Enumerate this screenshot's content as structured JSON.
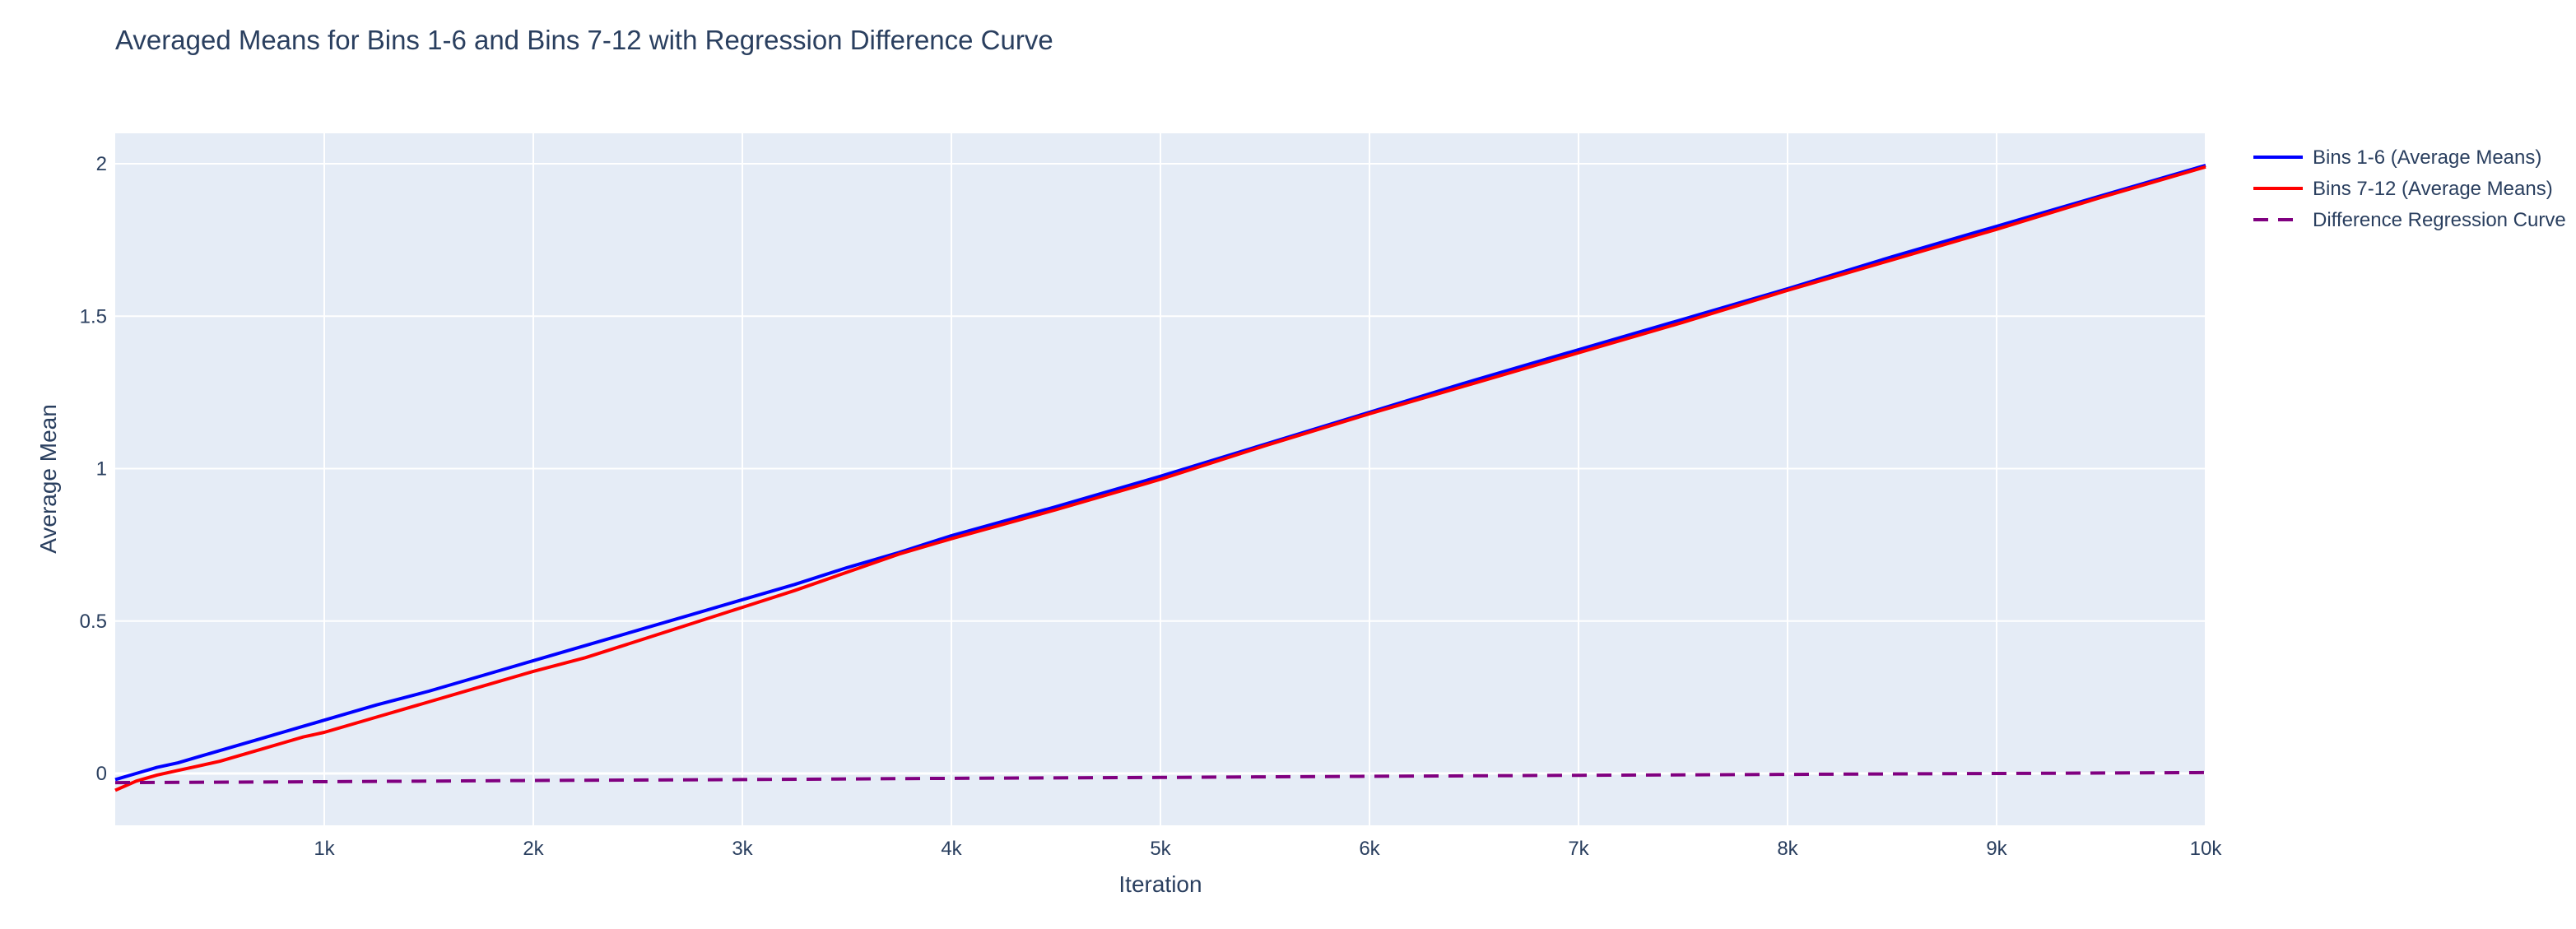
{
  "chart_data": {
    "type": "line",
    "title": "Averaged Means for Bins 1-6 and Bins 7-12 with Regression Difference Curve",
    "xlabel": "Iteration",
    "ylabel": "Average Mean",
    "xlim": [
      0,
      10000
    ],
    "ylim": [
      -0.17,
      2.1
    ],
    "x_ticks": [
      {
        "value": 1000,
        "label": "1k"
      },
      {
        "value": 2000,
        "label": "2k"
      },
      {
        "value": 3000,
        "label": "3k"
      },
      {
        "value": 4000,
        "label": "4k"
      },
      {
        "value": 5000,
        "label": "5k"
      },
      {
        "value": 6000,
        "label": "6k"
      },
      {
        "value": 7000,
        "label": "7k"
      },
      {
        "value": 8000,
        "label": "8k"
      },
      {
        "value": 9000,
        "label": "9k"
      },
      {
        "value": 10000,
        "label": "10k"
      }
    ],
    "y_ticks": [
      {
        "value": 0,
        "label": "0"
      },
      {
        "value": 0.5,
        "label": "0.5"
      },
      {
        "value": 1,
        "label": "1"
      },
      {
        "value": 1.5,
        "label": "1.5"
      },
      {
        "value": 2,
        "label": "2"
      }
    ],
    "grid": true,
    "background_color": "#E5ECF6",
    "grid_color": "#FFFFFF",
    "legend_position": "top-right, outside plot area",
    "series": [
      {
        "name": "Bins 1-6 (Average Means)",
        "color": "#0000FF",
        "dash": "solid",
        "x": [
          0,
          100,
          200,
          300,
          400,
          500,
          600,
          700,
          800,
          900,
          1000,
          1250,
          1500,
          1750,
          2000,
          2250,
          2500,
          2750,
          3000,
          3250,
          3500,
          3750,
          4000,
          4500,
          5000,
          5500,
          6000,
          6500,
          7000,
          7500,
          8000,
          8500,
          9000,
          9500,
          10000
        ],
        "y": [
          -0.02,
          0.0,
          0.02,
          0.035,
          0.055,
          0.075,
          0.095,
          0.115,
          0.135,
          0.155,
          0.175,
          0.225,
          0.27,
          0.32,
          0.37,
          0.42,
          0.47,
          0.52,
          0.57,
          0.62,
          0.675,
          0.725,
          0.78,
          0.875,
          0.975,
          1.08,
          1.185,
          1.29,
          1.39,
          1.49,
          1.59,
          1.695,
          1.795,
          1.895,
          1.995
        ]
      },
      {
        "name": "Bins 7-12 (Average Means)",
        "color": "#FF0000",
        "dash": "solid",
        "x": [
          0,
          100,
          200,
          300,
          400,
          500,
          600,
          700,
          800,
          900,
          1000,
          1250,
          1500,
          1750,
          2000,
          2250,
          2500,
          2750,
          3000,
          3250,
          3500,
          3750,
          4000,
          4500,
          5000,
          5500,
          6000,
          6500,
          7000,
          7500,
          8000,
          8500,
          9000,
          9500,
          10000
        ],
        "y": [
          -0.055,
          -0.025,
          -0.005,
          0.01,
          0.025,
          0.04,
          0.06,
          0.08,
          0.1,
          0.12,
          0.135,
          0.185,
          0.235,
          0.285,
          0.335,
          0.38,
          0.435,
          0.49,
          0.545,
          0.6,
          0.66,
          0.72,
          0.77,
          0.865,
          0.965,
          1.075,
          1.18,
          1.28,
          1.38,
          1.48,
          1.585,
          1.685,
          1.785,
          1.89,
          1.99
        ]
      },
      {
        "name": "Difference Regression Curve",
        "color": "#800080",
        "dash": "dash",
        "x": [
          0,
          1000,
          2000,
          3000,
          4000,
          5000,
          6000,
          7000,
          8000,
          9000,
          10000
        ],
        "y": [
          -0.03,
          -0.027,
          -0.023,
          -0.02,
          -0.016,
          -0.013,
          -0.009,
          -0.006,
          -0.003,
          0.0,
          0.003
        ]
      }
    ]
  }
}
